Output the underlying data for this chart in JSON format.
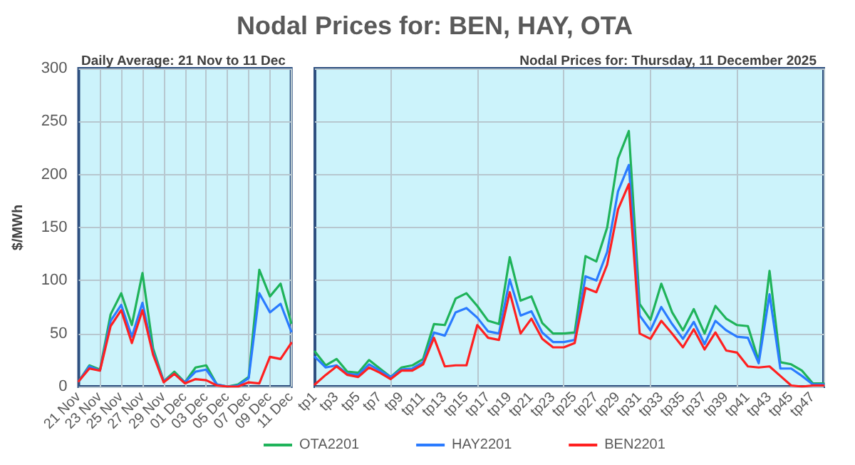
{
  "chart_data": [
    {
      "type": "line",
      "subtitle": "Daily Average: 21 Nov to 11 Dec",
      "ylabel": "$/MWh",
      "categories": [
        "21 Nov",
        null,
        "23 Nov",
        null,
        "25 Nov",
        null,
        "27 Nov",
        null,
        "29 Nov",
        null,
        "01 Dec",
        null,
        "03 Dec",
        null,
        "05 Dec",
        null,
        "07 Dec",
        null,
        "09 Dec",
        null,
        "11 Dec"
      ],
      "series": [
        {
          "color": "#1fb35a",
          "values": [
            5,
            20,
            16,
            68,
            88,
            58,
            107,
            36,
            5,
            14,
            4,
            18,
            20,
            2,
            0,
            2,
            9,
            110,
            85,
            97,
            60
          ]
        },
        {
          "color": "#2a7bff",
          "values": [
            5,
            19,
            15,
            62,
            77,
            47,
            79,
            32,
            5,
            12,
            4,
            14,
            16,
            2,
            0,
            1,
            8,
            88,
            70,
            78,
            52
          ]
        },
        {
          "color": "#ff2020",
          "values": [
            5,
            17,
            15,
            57,
            72,
            41,
            72,
            30,
            4,
            12,
            3,
            7,
            6,
            1,
            0,
            0,
            4,
            3,
            28,
            26,
            41
          ]
        }
      ],
      "ylim": [
        0,
        300
      ],
      "yticks": [
        0,
        50,
        100,
        150,
        200,
        250,
        300
      ],
      "grid": true,
      "legend": false,
      "marker": "none",
      "line_style": "solid"
    },
    {
      "type": "line",
      "title": "Nodal Prices for: BEN, HAY, OTA",
      "subtitle": "Nodal Prices for: Thursday, 11 December 2025",
      "categories": [
        "tp1",
        null,
        "tp3",
        null,
        "tp5",
        null,
        "tp7",
        null,
        "tp9",
        null,
        "tp11",
        null,
        "tp13",
        null,
        "tp15",
        null,
        "tp17",
        null,
        "tp19",
        null,
        "tp21",
        null,
        "tp23",
        null,
        "tp25",
        null,
        "tp27",
        null,
        "tp29",
        null,
        "tp31",
        null,
        "tp33",
        null,
        "tp35",
        null,
        "tp37",
        null,
        "tp39",
        null,
        "tp41",
        null,
        "tp43",
        null,
        "tp45",
        null,
        "tp47",
        null
      ],
      "series": [
        {
          "name": "OTA2201",
          "color": "#1fb35a",
          "values": [
            33,
            20,
            26,
            14,
            13,
            25,
            17,
            9,
            18,
            20,
            26,
            59,
            58,
            83,
            88,
            76,
            62,
            59,
            122,
            81,
            85,
            60,
            50,
            50,
            51,
            123,
            118,
            150,
            215,
            241,
            78,
            63,
            97,
            70,
            53,
            73,
            50,
            76,
            64,
            58,
            57,
            24,
            109,
            23,
            21,
            15,
            3,
            3
          ]
        },
        {
          "name": "HAY2201",
          "color": "#2a7bff",
          "values": [
            28,
            18,
            20,
            12,
            11,
            21,
            15,
            9,
            16,
            17,
            23,
            51,
            48,
            70,
            74,
            65,
            52,
            50,
            101,
            67,
            71,
            51,
            42,
            42,
            44,
            104,
            100,
            127,
            184,
            209,
            67,
            53,
            75,
            59,
            45,
            61,
            40,
            62,
            53,
            47,
            46,
            22,
            87,
            17,
            17,
            10,
            2,
            2
          ]
        },
        {
          "name": "BEN2201",
          "color": "#ff2020",
          "values": [
            2,
            11,
            19,
            11,
            9,
            18,
            13,
            7,
            15,
            15,
            21,
            46,
            19,
            20,
            20,
            58,
            46,
            44,
            89,
            50,
            64,
            45,
            37,
            37,
            41,
            93,
            89,
            115,
            167,
            191,
            50,
            45,
            62,
            50,
            37,
            54,
            35,
            51,
            34,
            32,
            19,
            18,
            19,
            10,
            1,
            0,
            1,
            1
          ]
        }
      ],
      "ylim": [
        0,
        300
      ],
      "yticks": [
        0,
        50,
        100,
        150,
        200,
        250,
        300
      ],
      "tick_labels": "x",
      "grid": true,
      "legend": "bottom",
      "marker": "none",
      "line_style": "solid"
    }
  ]
}
